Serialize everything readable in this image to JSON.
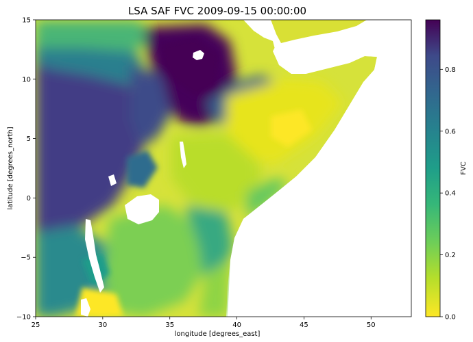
{
  "chart_data": {
    "type": "heatmap",
    "title": "LSA SAF FVC   2009-09-15 00:00:00",
    "xlabel": "longitude [degrees_east]",
    "ylabel": "latitude [degrees_north]",
    "xlim": [
      25,
      53
    ],
    "ylim": [
      -10,
      15
    ],
    "xticks": [
      25,
      30,
      35,
      40,
      45,
      50
    ],
    "yticks": [
      -10,
      -5,
      0,
      5,
      10,
      15
    ],
    "xtick_labels": [
      "25",
      "30",
      "35",
      "40",
      "45",
      "50"
    ],
    "ytick_labels": [
      "−10",
      "−5",
      "0",
      "5",
      "10",
      "15"
    ],
    "colorbar": {
      "label": "FVC",
      "range": [
        0.0,
        0.96
      ],
      "ticks": [
        0.0,
        0.2,
        0.4,
        0.6,
        0.8
      ],
      "tick_labels": [
        "0.0",
        "0.2",
        "0.4",
        "0.6",
        "0.8"
      ],
      "colormap": "viridis"
    },
    "grid": false
  },
  "colors": {
    "low": "#fde725",
    "mid": "#21918c",
    "high": "#440154",
    "nodata": "#ffffff"
  }
}
